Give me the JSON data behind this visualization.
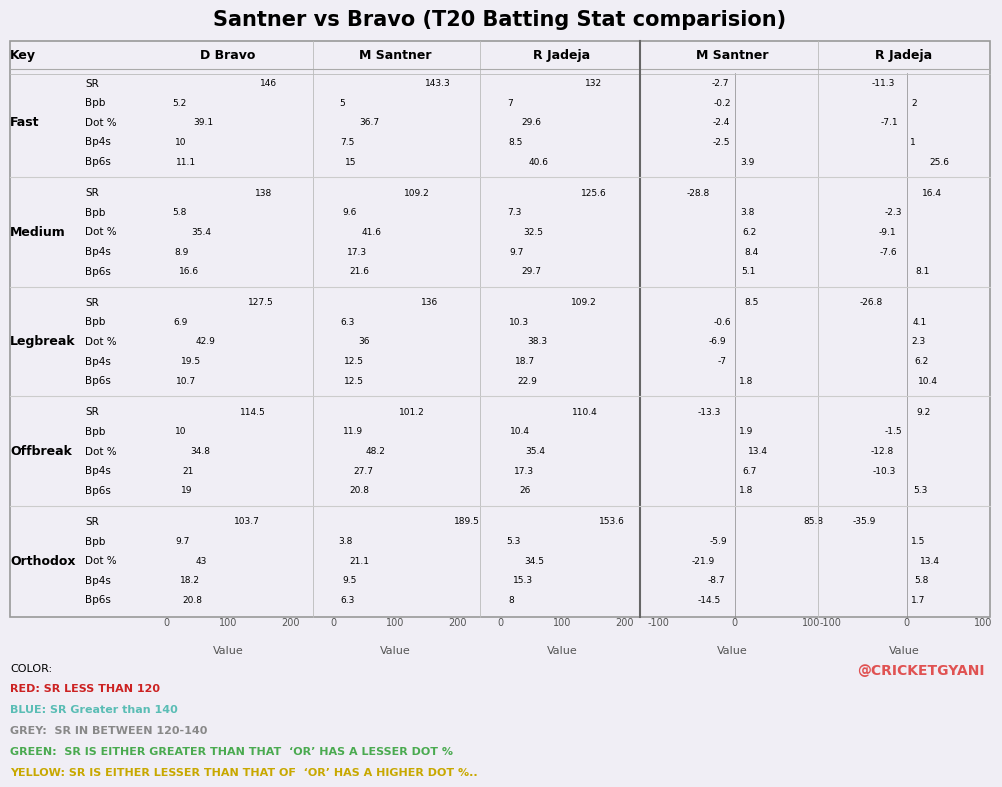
{
  "title": "Santner vs Bravo (T20 Batting Stat comparision)",
  "background_color": "#f0eef5",
  "categories": [
    "Fast",
    "Medium",
    "Legbreak",
    "Offbreak",
    "Orthodox"
  ],
  "metrics": [
    "SR",
    "Bpb",
    "Dot %",
    "Bp4s",
    "Bp6s"
  ],
  "players": [
    "D Bravo",
    "M Santner",
    "R Jadeja"
  ],
  "diff_players": [
    "M Santner",
    "R Jadeja"
  ],
  "data": {
    "D Bravo": {
      "Fast": [
        146.0,
        5.2,
        39.1,
        10.0,
        11.1
      ],
      "Medium": [
        138.0,
        5.8,
        35.4,
        8.9,
        16.6
      ],
      "Legbreak": [
        127.5,
        6.9,
        42.9,
        19.5,
        10.7
      ],
      "Offbreak": [
        114.5,
        10.0,
        34.8,
        21.0,
        19.0
      ],
      "Orthodox": [
        103.7,
        9.7,
        43.0,
        18.2,
        20.8
      ]
    },
    "M Santner": {
      "Fast": [
        143.3,
        5.0,
        36.7,
        7.5,
        15.0
      ],
      "Medium": [
        109.2,
        9.6,
        41.6,
        17.3,
        21.6
      ],
      "Legbreak": [
        136.0,
        6.3,
        36.0,
        12.5,
        12.5
      ],
      "Offbreak": [
        101.2,
        11.9,
        48.2,
        27.7,
        20.8
      ],
      "Orthodox": [
        189.5,
        3.8,
        21.1,
        9.5,
        6.3
      ]
    },
    "R Jadeja": {
      "Fast": [
        132.0,
        7.0,
        29.6,
        8.5,
        40.6
      ],
      "Medium": [
        125.6,
        7.3,
        32.5,
        9.7,
        29.7
      ],
      "Legbreak": [
        109.2,
        10.3,
        38.3,
        18.7,
        22.9
      ],
      "Offbreak": [
        110.4,
        10.4,
        35.4,
        17.3,
        26.0
      ],
      "Orthodox": [
        153.6,
        5.3,
        34.5,
        15.3,
        8.0
      ]
    }
  },
  "diff_data": {
    "M Santner": {
      "Fast": [
        -2.7,
        -0.2,
        -2.4,
        -2.5,
        3.9
      ],
      "Medium": [
        -28.8,
        3.8,
        6.2,
        8.4,
        5.1
      ],
      "Legbreak": [
        8.5,
        -0.6,
        -6.9,
        -7.0,
        1.8
      ],
      "Offbreak": [
        -13.3,
        1.9,
        13.4,
        6.7,
        1.8
      ],
      "Orthodox": [
        85.8,
        -5.9,
        -21.9,
        -8.7,
        -14.5
      ]
    },
    "R Jadeja": {
      "Fast": [
        -11.3,
        2.0,
        -7.1,
        1.0,
        25.6
      ],
      "Medium": [
        16.4,
        -2.3,
        -9.1,
        -7.6,
        8.1
      ],
      "Legbreak": [
        -26.8,
        4.1,
        2.3,
        6.2,
        10.4
      ],
      "Offbreak": [
        9.2,
        -1.5,
        -12.8,
        -10.3,
        5.3
      ],
      "Orthodox": [
        -35.9,
        1.5,
        13.4,
        5.8,
        1.7
      ]
    }
  },
  "sr_colors": {
    "D Bravo": {
      "Fast": "#5abdb5",
      "Medium": "#b5afa5",
      "Legbreak": "#b5afa5",
      "Offbreak": "#e05252",
      "Orthodox": "#e05252"
    },
    "M Santner": {
      "Fast": "#5abdb5",
      "Medium": "#e05252",
      "Legbreak": "#b5afa5",
      "Offbreak": "#e05252",
      "Orthodox": "#5abdb5"
    },
    "R Jadeja": {
      "Fast": "#b5afa5",
      "Medium": "#b5afa5",
      "Legbreak": "#e05252",
      "Offbreak": "#e05252",
      "Orthodox": "#5abdb5"
    }
  },
  "diff_sr_colors": {
    "M Santner": {
      "Fast": "#b5afa5",
      "Medium": "#e8c84a",
      "Legbreak": "#4aaa50",
      "Offbreak": "#e8c84a",
      "Orthodox": "#4aaa50"
    },
    "R Jadeja": {
      "Fast": "#e8c84a",
      "Medium": "#4aaa50",
      "Legbreak": "#e8c84a",
      "Offbreak": "#4aaa50",
      "Orthodox": "#e8c84a"
    }
  },
  "legend_text": [
    [
      "COLOR:",
      "black"
    ],
    [
      "RED: SR LESS THAN 120",
      "#cc2222"
    ],
    [
      "BLUE: SR Greater than 140",
      "#5abdb5"
    ],
    [
      "GREY:  SR IN BETWEEN 120-140",
      "#888888"
    ],
    [
      "GREEN:  SR IS EITHER GREATER THAN THAT  ‘OR’ HAS A LESSER DOT %",
      "#4aaa50"
    ],
    [
      "YELLOW: SR IS EITHER LESSER THAN THAT OF  ‘OR’ HAS A HIGHER DOT %..",
      "#c8a800"
    ]
  ],
  "watermark": "@CRICKETGYANI"
}
